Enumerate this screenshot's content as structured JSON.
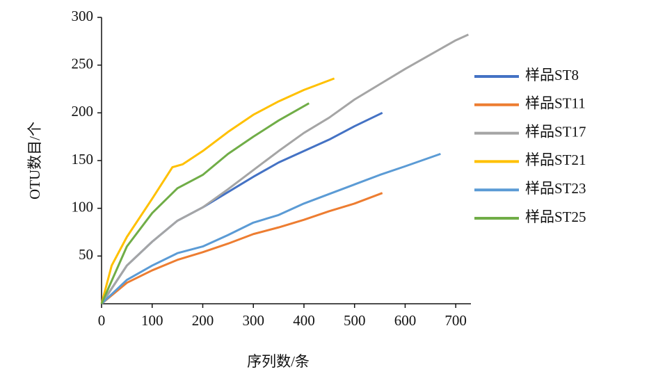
{
  "chart_data": {
    "type": "line",
    "xlabel": "序列数/条",
    "ylabel": "OTU数目/个",
    "xlim": [
      0,
      730
    ],
    "xticks": [
      0,
      100,
      200,
      300,
      400,
      500,
      600,
      700
    ],
    "ylim": [
      0,
      300
    ],
    "yticks": [
      50,
      100,
      150,
      200,
      250,
      300
    ],
    "legend": "right",
    "series": [
      {
        "name": "样品ST8",
        "color": "#4472c4",
        "x": [
          0,
          50,
          100,
          150,
          200,
          250,
          300,
          350,
          400,
          450,
          500,
          555
        ],
        "values": [
          0,
          40,
          65,
          87,
          101,
          117,
          133,
          148,
          160,
          172,
          186,
          200
        ]
      },
      {
        "name": "样品ST11",
        "color": "#ed7d31",
        "x": [
          0,
          50,
          100,
          150,
          200,
          250,
          300,
          350,
          400,
          450,
          500,
          555
        ],
        "values": [
          0,
          22,
          35,
          46,
          54,
          63,
          73,
          80,
          88,
          97,
          105,
          116
        ]
      },
      {
        "name": "样品ST17",
        "color": "#a5a5a5",
        "x": [
          0,
          50,
          100,
          150,
          200,
          250,
          300,
          350,
          400,
          450,
          500,
          550,
          600,
          650,
          700,
          725
        ],
        "values": [
          0,
          40,
          65,
          87,
          101,
          120,
          140,
          160,
          179,
          195,
          214,
          230,
          246,
          261,
          276,
          282
        ]
      },
      {
        "name": "样品ST21",
        "color": "#ffc000",
        "x": [
          0,
          20,
          50,
          100,
          140,
          160,
          200,
          250,
          300,
          350,
          400,
          460
        ],
        "values": [
          0,
          40,
          70,
          110,
          143,
          146,
          160,
          180,
          198,
          212,
          224,
          236
        ]
      },
      {
        "name": "样品ST23",
        "color": "#5b9bd5",
        "x": [
          0,
          50,
          100,
          150,
          200,
          250,
          300,
          350,
          400,
          450,
          500,
          550,
          600,
          670
        ],
        "values": [
          0,
          25,
          40,
          53,
          60,
          72,
          85,
          93,
          105,
          115,
          125,
          135,
          144,
          157
        ]
      },
      {
        "name": "样品ST25",
        "color": "#70ad47",
        "x": [
          0,
          50,
          100,
          150,
          200,
          250,
          300,
          350,
          410
        ],
        "values": [
          0,
          60,
          95,
          121,
          135,
          157,
          175,
          192,
          210
        ]
      }
    ]
  }
}
